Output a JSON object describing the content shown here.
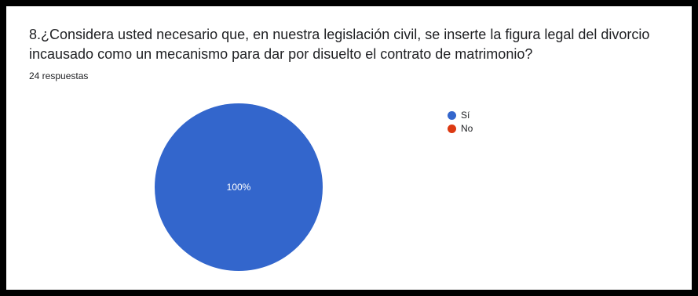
{
  "question": {
    "text": "8.¿Considera usted necesario que, en nuestra legislación civil, se inserte la figura legal del divorcio incausado como un mecanismo para dar por disuelto el contrato de matrimonio?",
    "responses": "24 respuestas"
  },
  "chart_data": {
    "type": "pie",
    "title": "8.¿Considera usted necesario que, en nuestra legislación civil, se inserte la figura legal del divorcio incausado como un mecanismo para dar por disuelto el contrato de matrimonio?",
    "categories": [
      "Sí",
      "No"
    ],
    "values": [
      100,
      0
    ],
    "value_unit": "%",
    "slice_labels": [
      "100%",
      ""
    ],
    "colors": [
      "#3366cc",
      "#dc3912"
    ],
    "legend_position": "right"
  }
}
